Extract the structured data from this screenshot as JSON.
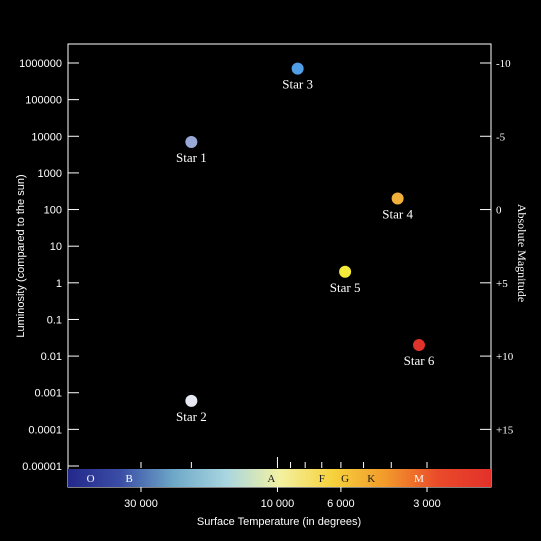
{
  "chart_data": {
    "type": "scatter",
    "title": "",
    "xlabel": "Surface Temperature (in degrees)",
    "ylabel": "Luminosity (compared to the sun)",
    "y2label": "Absolute Magnitude",
    "x_scale": "log",
    "x_reversed": true,
    "x_ticks": [
      {
        "label": "30 000",
        "value": 30000
      },
      {
        "label": "10 000",
        "value": 10000
      },
      {
        "label": "6 000",
        "value": 6000
      },
      {
        "label": "3 000",
        "value": 3000
      }
    ],
    "y_scale": "log",
    "y_ticks": [
      "1000000",
      "100000",
      "10000",
      "1000",
      "100",
      "10",
      "1",
      "0.1",
      "0.01",
      "0.001",
      "0.0001",
      "0.00001"
    ],
    "y_tick_values": [
      1000000,
      100000,
      10000,
      1000,
      100,
      10,
      1,
      0.1,
      0.01,
      0.001,
      0.0001,
      1e-05
    ],
    "y2_ticks": [
      {
        "label": "-10",
        "luminosity": 1000000
      },
      {
        "label": "-5",
        "luminosity": 10000
      },
      {
        "label": "0",
        "luminosity": 100
      },
      {
        "label": "+5",
        "luminosity": 1
      },
      {
        "label": "+10",
        "luminosity": 0.01
      },
      {
        "label": "+15",
        "luminosity": 0.0001
      }
    ],
    "spectral_classes": [
      {
        "label": "O",
        "temperature": 45000
      },
      {
        "label": "B",
        "temperature": 33000
      },
      {
        "label": "A",
        "temperature": 10500
      },
      {
        "label": "F",
        "temperature": 7000
      },
      {
        "label": "G",
        "temperature": 5800
      },
      {
        "label": "K",
        "temperature": 4700
      },
      {
        "label": "M",
        "temperature": 3200
      }
    ],
    "points": [
      {
        "name": "Star 1",
        "temperature": 20000,
        "luminosity": 7000,
        "color": "#98a9d8"
      },
      {
        "name": "Star 2",
        "temperature": 20000,
        "luminosity": 0.0006,
        "color": "#e6e8f2"
      },
      {
        "name": "Star 3",
        "temperature": 8500,
        "luminosity": 700000,
        "color": "#4f9ee6"
      },
      {
        "name": "Star 4",
        "temperature": 3800,
        "luminosity": 200,
        "color": "#f0b03a"
      },
      {
        "name": "Star 5",
        "temperature": 5800,
        "luminosity": 2,
        "color": "#f4ea3a"
      },
      {
        "name": "Star 6",
        "temperature": 3200,
        "luminosity": 0.02,
        "color": "#e0332c"
      }
    ],
    "colors": {
      "background": "#000000",
      "axis": "#ffffff",
      "temperature_bar": [
        "#23288a",
        "#3b4ea6",
        "#6ea8c8",
        "#a9d6e0",
        "#f3f1a2",
        "#f6d23c",
        "#f29a2b",
        "#ea4a2a",
        "#e2312a"
      ]
    }
  }
}
